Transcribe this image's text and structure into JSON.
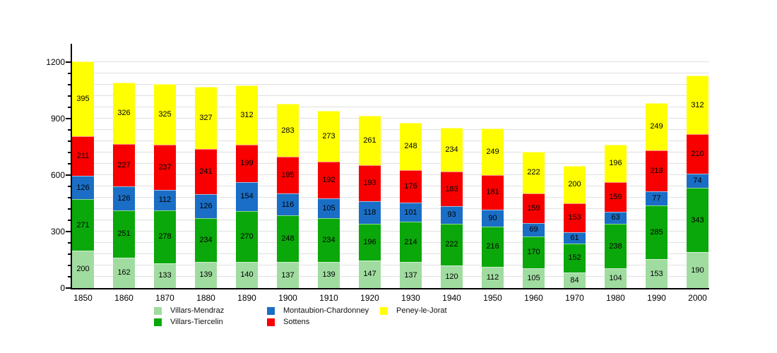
{
  "chart_data": {
    "type": "bar",
    "stacked": true,
    "title": "",
    "xlabel": "",
    "ylabel": "",
    "categories": [
      "1850",
      "1860",
      "1870",
      "1880",
      "1890",
      "1900",
      "1910",
      "1920",
      "1930",
      "1940",
      "1950",
      "1960",
      "1970",
      "1980",
      "1990",
      "2000"
    ],
    "series": [
      {
        "name": "Villars-Mendraz",
        "color": "#a0dca0",
        "values": [
          200,
          162,
          133,
          139,
          140,
          137,
          139,
          147,
          137,
          120,
          112,
          105,
          84,
          104,
          153,
          190
        ]
      },
      {
        "name": "Villars-Tiercelin",
        "color": "#0aa80a",
        "values": [
          271,
          251,
          278,
          234,
          270,
          248,
          234,
          196,
          214,
          222,
          216,
          170,
          152,
          238,
          285,
          343
        ]
      },
      {
        "name": "Montaubion-Chardonney",
        "color": "#1a6ec5",
        "values": [
          126,
          126,
          112,
          126,
          154,
          116,
          105,
          118,
          101,
          93,
          90,
          69,
          61,
          63,
          77,
          74
        ]
      },
      {
        "name": "Sottens",
        "color": "#f80000",
        "values": [
          211,
          227,
          237,
          241,
          199,
          195,
          192,
          193,
          176,
          183,
          181,
          159,
          153,
          159,
          218,
          210
        ]
      },
      {
        "name": "Peney-le-Jorat",
        "color": "#ffff00",
        "values": [
          395,
          326,
          325,
          327,
          312,
          283,
          273,
          261,
          248,
          234,
          249,
          222,
          200,
          196,
          249,
          312
        ]
      }
    ],
    "y_axis": {
      "ticks": [
        0,
        300,
        600,
        900,
        1200
      ],
      "minor_step": 60,
      "max": 1290
    },
    "grid": true,
    "legend_position": "bottom",
    "value_labels": true,
    "colors": {
      "grid": "#e0e0e0",
      "axis": "#000000",
      "background": "#ffffff"
    }
  }
}
